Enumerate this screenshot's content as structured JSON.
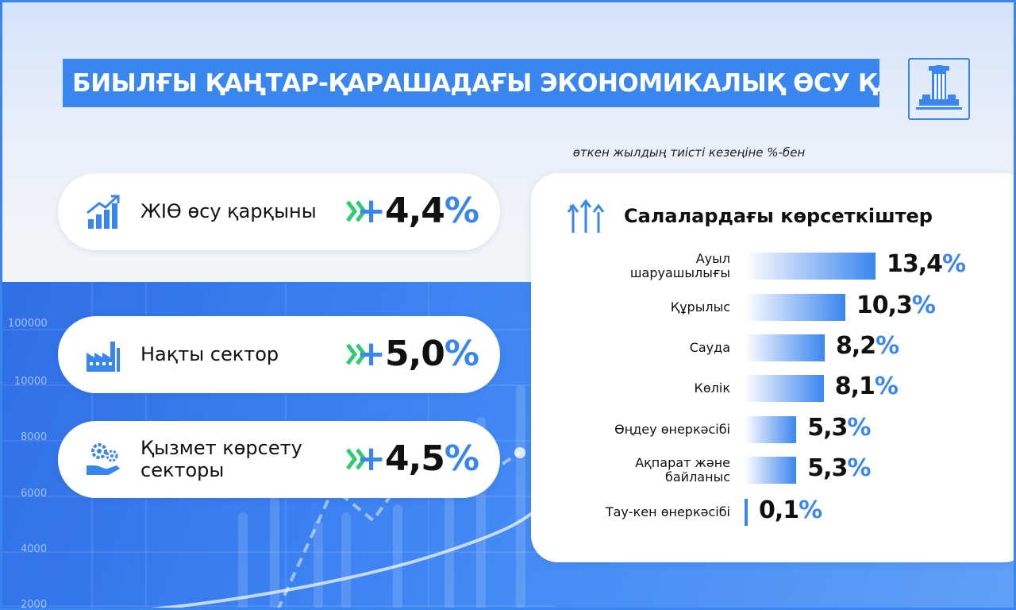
{
  "title": "БИЫЛҒЫ ҚАҢТАР-ҚАРАШАДАҒЫ ЭКОНОМИКАЛЫҚ ӨСУ ҚАРҚЫНЫ",
  "subtitle": "өткен жылдың тиісті кезеңіне %-бен",
  "colors": {
    "accent": "#3a86f0",
    "arrow_green": "#2ecc71",
    "text": "#111111"
  },
  "background_axis": [
    "100000",
    "10000",
    "8000",
    "6000",
    "4000",
    "2000"
  ],
  "indicators": [
    {
      "icon": "growth-chart-icon",
      "label": "ЖІӨ өсу қарқыны",
      "sign": "+",
      "number": "4,4",
      "unit": "%"
    },
    {
      "icon": "factory-icon",
      "label": "Нақты сектор",
      "sign": "+",
      "number": "5,0",
      "unit": "%"
    },
    {
      "icon": "service-gears-icon",
      "label_line1": "Қызмет көрсету",
      "label_line2": "секторы",
      "sign": "+",
      "number": "4,5",
      "unit": "%"
    }
  ],
  "chart_data": {
    "type": "bar",
    "orientation": "horizontal",
    "title": "Салалардағы көрсеткіштер",
    "categories": [
      "Ауыл шаруашылығы",
      "Құрылыс",
      "Сауда",
      "Көлік",
      "Өңдеу өнеркәсібі",
      "Ақпарат және байланыс",
      "Тау-кен өнеркәсібі"
    ],
    "category_lines": [
      [
        "Ауыл",
        "шаруашылығы"
      ],
      [
        "Құрылыс"
      ],
      [
        "Сауда"
      ],
      [
        "Көлік"
      ],
      [
        "Өңдеу өнеркәсібі"
      ],
      [
        "Ақпарат және",
        "байланыс"
      ],
      [
        "Тау-кен өнеркәсібі"
      ]
    ],
    "values": [
      13.4,
      10.3,
      8.2,
      8.1,
      5.3,
      5.3,
      0.1
    ],
    "value_labels": [
      "13,4",
      "10,3",
      "8,2",
      "8,1",
      "5,3",
      "5,3",
      "0,1"
    ],
    "unit": "%"
  }
}
